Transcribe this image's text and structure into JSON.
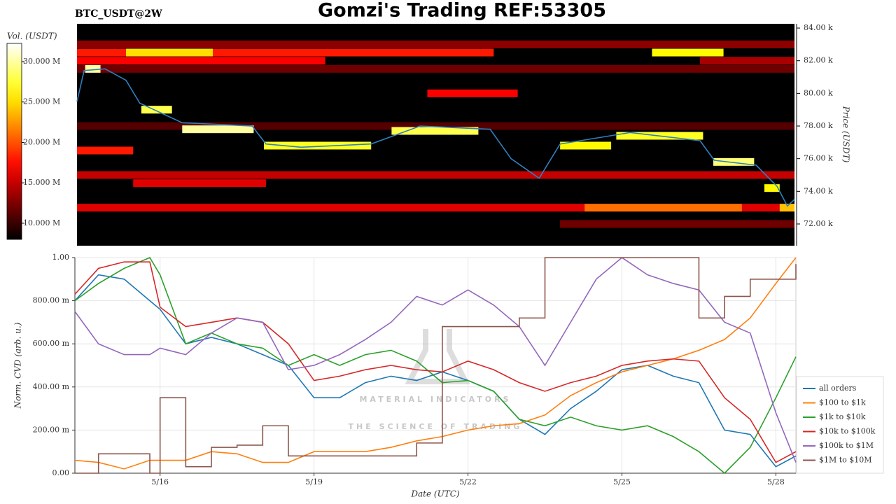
{
  "chart_data": [
    {
      "type": "heatmap",
      "title": "Gomzi's Trading REF:53305",
      "subtitle": "BTC_USDT@2W",
      "y_label": "Price (USDT)",
      "colorbar_label": "Vol. (USDT)",
      "xlim": [
        14.34,
        28.39
      ],
      "ylim": [
        70.67,
        84.26
      ],
      "yticks": [
        {
          "value": 84,
          "label": "84.00 k"
        },
        {
          "value": 82,
          "label": "82.00 k"
        },
        {
          "value": 80,
          "label": "80.00 k"
        },
        {
          "value": 78,
          "label": "78.00 k"
        },
        {
          "value": 76,
          "label": "76.00 k"
        },
        {
          "value": 74,
          "label": "74.00 k"
        },
        {
          "value": 72,
          "label": "72.00 k"
        }
      ],
      "clim": [
        8,
        32.25
      ],
      "cticks": [
        {
          "value": 30,
          "label": "30.000 M"
        },
        {
          "value": 25,
          "label": "25.000 M"
        },
        {
          "value": 20,
          "label": "20.000 M"
        },
        {
          "value": 15,
          "label": "15.000 M"
        },
        {
          "value": 10,
          "label": "10.000 M"
        }
      ],
      "walls": [
        {
          "price": 83.0,
          "from": 14.34,
          "to": 28.39,
          "value": 13
        },
        {
          "price": 82.5,
          "from": 14.34,
          "to": 22.5,
          "value": 18
        },
        {
          "price": 82.5,
          "from": 15.3,
          "to": 17.0,
          "value": 25
        },
        {
          "price": 82.5,
          "from": 25.6,
          "to": 27.0,
          "value": 26
        },
        {
          "price": 82.0,
          "from": 14.34,
          "to": 19.2,
          "value": 17
        },
        {
          "price": 82.0,
          "from": 26.54,
          "to": 28.39,
          "value": 14
        },
        {
          "price": 81.5,
          "from": 14.34,
          "to": 28.39,
          "value": 12
        },
        {
          "price": 80.0,
          "from": 21.2,
          "to": 22.97,
          "value": 17
        },
        {
          "price": 78.0,
          "from": 14.34,
          "to": 28.39,
          "value": 11
        },
        {
          "price": 76.5,
          "from": 14.34,
          "to": 15.44,
          "value": 18
        },
        {
          "price": 75.0,
          "from": 14.34,
          "to": 28.39,
          "value": 15
        },
        {
          "price": 74.5,
          "from": 15.44,
          "to": 18.04,
          "value": 16
        },
        {
          "price": 73.0,
          "from": 14.34,
          "to": 28.39,
          "value": 16
        },
        {
          "price": 73.0,
          "from": 24.28,
          "to": 27.36,
          "value": 21
        },
        {
          "price": 72.0,
          "from": 23.8,
          "to": 28.39,
          "value": 12
        },
        {
          "price": 81.5,
          "from": 14.5,
          "to": 14.8,
          "value": 30
        },
        {
          "price": 79.0,
          "from": 15.6,
          "to": 16.2,
          "value": 28
        },
        {
          "price": 77.8,
          "from": 16.4,
          "to": 17.8,
          "value": 30
        },
        {
          "price": 76.8,
          "from": 18.0,
          "to": 20.1,
          "value": 27
        },
        {
          "price": 77.7,
          "from": 20.5,
          "to": 22.2,
          "value": 28
        },
        {
          "price": 76.8,
          "from": 23.8,
          "to": 24.8,
          "value": 26
        },
        {
          "price": 77.4,
          "from": 24.9,
          "to": 26.6,
          "value": 27
        },
        {
          "price": 75.8,
          "from": 26.8,
          "to": 27.6,
          "value": 29
        },
        {
          "price": 74.2,
          "from": 27.8,
          "to": 28.1,
          "value": 26
        },
        {
          "price": 73.0,
          "from": 28.1,
          "to": 28.39,
          "value": 24
        }
      ],
      "x": [
        14.34,
        14.48,
        14.89,
        15.3,
        15.57,
        16.4,
        17.77,
        18.04,
        18.73,
        20.1,
        21.06,
        22.43,
        22.84,
        23.39,
        23.8,
        25.17,
        26.54,
        26.82,
        27.64,
        28.05,
        28.25,
        28.39
      ],
      "series": [
        {
          "color": "#2f7fc1",
          "values": [
            79.5,
            81.4,
            81.5,
            80.8,
            79.4,
            78.2,
            78.0,
            76.9,
            76.7,
            76.9,
            78.0,
            77.8,
            76.0,
            74.8,
            76.9,
            77.6,
            77.1,
            75.9,
            75.6,
            74.3,
            73.1,
            73.5
          ]
        }
      ]
    },
    {
      "type": "line",
      "y_label": "Norm. CVD (arb. u.)",
      "x_label": "Date (UTC)",
      "watermark": [
        "MATERIAL INDICATORS",
        "THE SCIENCE OF TRADING"
      ],
      "xlim": [
        14.34,
        28.39
      ],
      "ylim": [
        0,
        1
      ],
      "grid": true,
      "legend": "right",
      "xticks": [
        {
          "value": 16,
          "label": "5/16"
        },
        {
          "value": 19,
          "label": "5/19"
        },
        {
          "value": 22,
          "label": "5/22"
        },
        {
          "value": 25,
          "label": "5/25"
        },
        {
          "value": 28,
          "label": "5/28"
        }
      ],
      "yticks": [
        {
          "value": 0,
          "label": "0.00"
        },
        {
          "value": 0.2,
          "label": "200.00 m"
        },
        {
          "value": 0.4,
          "label": "400.00 m"
        },
        {
          "value": 0.6,
          "label": "600.00 m"
        },
        {
          "value": 0.8,
          "label": "800.00 m"
        },
        {
          "value": 1,
          "label": "1.00"
        }
      ],
      "x": [
        14.34,
        14.8,
        15.3,
        15.8,
        16.0,
        16.5,
        17.0,
        17.5,
        18.0,
        18.5,
        19.0,
        19.5,
        20.0,
        20.5,
        21.0,
        21.5,
        22.0,
        22.5,
        23.0,
        23.5,
        24.0,
        24.5,
        25.0,
        25.5,
        26.0,
        26.5,
        27.0,
        27.5,
        28.0,
        28.39
      ],
      "series": [
        {
          "name": "all orders",
          "color": "#1f77b4",
          "values": [
            0.8,
            0.92,
            0.9,
            0.8,
            0.76,
            0.6,
            0.63,
            0.6,
            0.55,
            0.5,
            0.35,
            0.35,
            0.42,
            0.45,
            0.43,
            0.47,
            0.43,
            0.38,
            0.25,
            0.18,
            0.3,
            0.38,
            0.48,
            0.5,
            0.45,
            0.42,
            0.2,
            0.18,
            0.03,
            0.08
          ]
        },
        {
          "name": "$100 to $1k",
          "color": "#ff7f0e",
          "values": [
            0.06,
            0.05,
            0.02,
            0.06,
            0.06,
            0.06,
            0.1,
            0.09,
            0.05,
            0.05,
            0.1,
            0.1,
            0.1,
            0.12,
            0.15,
            0.17,
            0.2,
            0.22,
            0.23,
            0.27,
            0.36,
            0.42,
            0.47,
            0.5,
            0.53,
            0.57,
            0.62,
            0.72,
            0.88,
            1.0
          ]
        },
        {
          "name": "$1k to $10k",
          "color": "#2ca02c",
          "values": [
            0.8,
            0.88,
            0.95,
            1.0,
            0.92,
            0.6,
            0.65,
            0.6,
            0.58,
            0.5,
            0.55,
            0.5,
            0.55,
            0.57,
            0.52,
            0.42,
            0.43,
            0.38,
            0.25,
            0.22,
            0.26,
            0.22,
            0.2,
            0.22,
            0.17,
            0.1,
            0.0,
            0.12,
            0.35,
            0.54
          ]
        },
        {
          "name": "$10k to $100k",
          "color": "#d62728",
          "values": [
            0.83,
            0.95,
            0.98,
            0.98,
            0.77,
            0.68,
            0.7,
            0.72,
            0.7,
            0.6,
            0.43,
            0.45,
            0.48,
            0.5,
            0.48,
            0.47,
            0.52,
            0.48,
            0.42,
            0.38,
            0.42,
            0.45,
            0.5,
            0.52,
            0.53,
            0.52,
            0.35,
            0.25,
            0.05,
            0.1
          ]
        },
        {
          "name": "$100k to $1M",
          "color": "#9467bd",
          "values": [
            0.75,
            0.6,
            0.55,
            0.55,
            0.58,
            0.55,
            0.65,
            0.72,
            0.7,
            0.48,
            0.5,
            0.55,
            0.62,
            0.7,
            0.82,
            0.78,
            0.85,
            0.78,
            0.68,
            0.5,
            0.7,
            0.9,
            1.0,
            0.92,
            0.88,
            0.85,
            0.7,
            0.65,
            0.28,
            0.05
          ]
        },
        {
          "name": "$1M to $10M",
          "color": "#8c564b",
          "step": true,
          "values": [
            0.0,
            0.09,
            0.09,
            0.0,
            0.35,
            0.03,
            0.12,
            0.13,
            0.22,
            0.08,
            0.08,
            0.08,
            0.08,
            0.08,
            0.14,
            0.68,
            0.68,
            0.68,
            0.72,
            1.0,
            1.0,
            1.0,
            1.0,
            1.0,
            1.0,
            0.72,
            0.82,
            0.9,
            0.9,
            0.97
          ]
        }
      ]
    }
  ]
}
